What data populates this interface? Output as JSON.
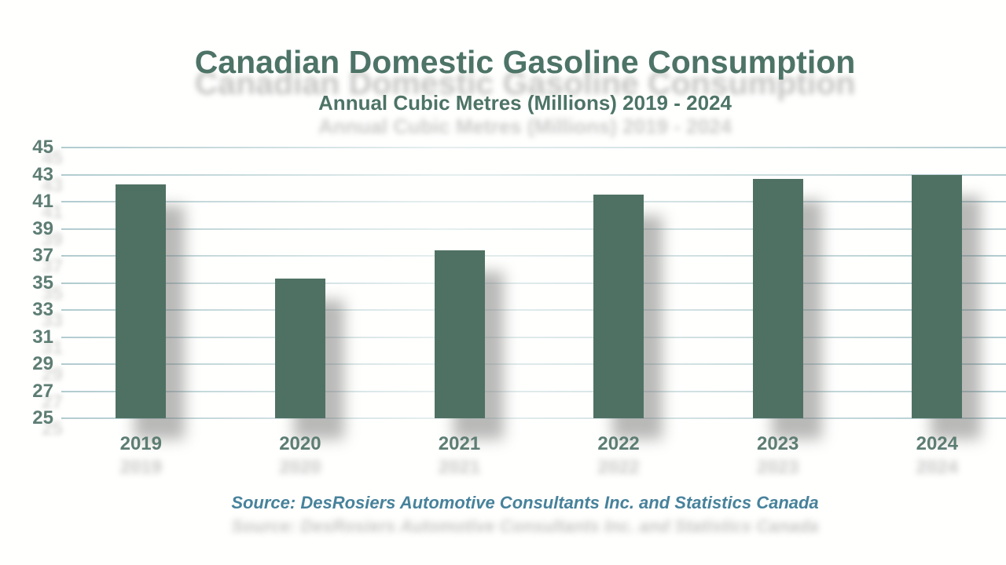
{
  "chart_data": {
    "type": "bar",
    "title": "Canadian Domestic Gasoline Consumption",
    "subtitle": "Annual Cubic Metres (Millions) 2019 - 2024",
    "source": "Source: DesRosiers Automotive Consultants Inc. and Statistics Canada",
    "categories": [
      "2019",
      "2020",
      "2021",
      "2022",
      "2023",
      "2024"
    ],
    "values": [
      42.3,
      35.3,
      37.4,
      41.5,
      42.7,
      43.0
    ],
    "xlabel": "",
    "ylabel": "",
    "ylim": [
      25,
      45
    ],
    "ytick_step": 2,
    "yticks": [
      45,
      43,
      41,
      39,
      37,
      35,
      33,
      31,
      29,
      27,
      25
    ],
    "grid": true,
    "legend": false,
    "colors": {
      "bar": "#4f7163",
      "title": "#4d7466",
      "axis_labels": "#5d7d73",
      "gridline": "#adc9cc",
      "source": "#47829b",
      "background": "#fffffe"
    }
  }
}
